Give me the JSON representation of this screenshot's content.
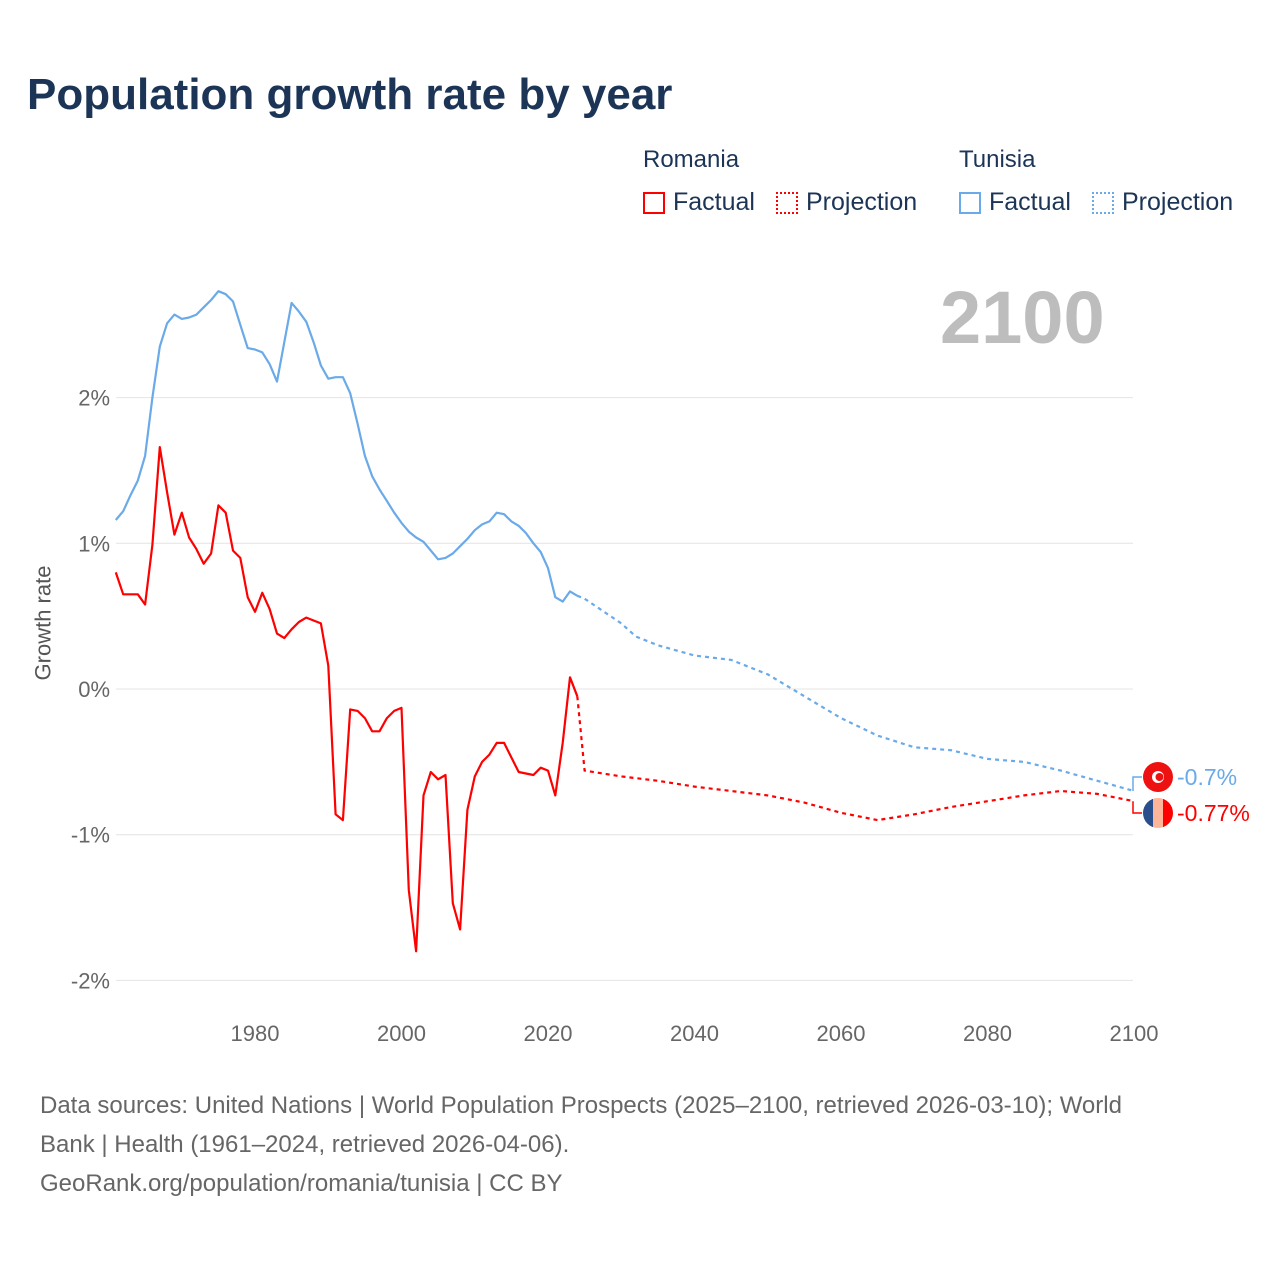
{
  "chart_data": {
    "type": "line",
    "title": "Population growth rate by year",
    "ylabel": "Growth rate",
    "xlabel": "",
    "current_year_label": "2100",
    "xlim": [
      1961,
      2100
    ],
    "ylim": [
      -2.2,
      2.9
    ],
    "x_ticks": [
      "1980",
      "2000",
      "2020",
      "2040",
      "2060",
      "2080",
      "2100"
    ],
    "x_tick_values": [
      1980,
      2000,
      2020,
      2040,
      2060,
      2080,
      2100
    ],
    "y_ticks": [
      "2%",
      "1%",
      "0%",
      "-1%",
      "-2%"
    ],
    "y_tick_values": [
      2,
      1,
      0,
      -1,
      -2
    ],
    "grid": true,
    "legend_position": "top-right",
    "legend": {
      "groups": [
        {
          "name": "Romania",
          "factual": "Factual",
          "projection": "Projection"
        },
        {
          "name": "Tunisia",
          "factual": "Factual",
          "projection": "Projection"
        }
      ]
    },
    "series": [
      {
        "name": "Romania",
        "color": "#ff0000",
        "end_label": "-0.77%",
        "factual_start_year": 1961,
        "factual": [
          0.8,
          0.65,
          0.65,
          0.65,
          0.58,
          0.99,
          1.66,
          1.35,
          1.06,
          1.21,
          1.04,
          0.96,
          0.86,
          0.93,
          1.26,
          1.21,
          0.95,
          0.9,
          0.63,
          0.53,
          0.66,
          0.55,
          0.38,
          0.35,
          0.41,
          0.46,
          0.49,
          0.47,
          0.45,
          0.16,
          -0.86,
          -0.9,
          -0.14,
          -0.15,
          -0.2,
          -0.29,
          -0.29,
          -0.2,
          -0.15,
          -0.13,
          -1.38,
          -1.8,
          -0.73,
          -0.57,
          -0.62,
          -0.59,
          -1.47,
          -1.65,
          -0.83,
          -0.6,
          -0.5,
          -0.45,
          -0.37,
          -0.37,
          -0.47,
          -0.57,
          -0.58,
          -0.59,
          -0.54,
          -0.56,
          -0.73,
          -0.37,
          0.08,
          -0.05
        ],
        "projection_years": [
          2024,
          2025,
          2030,
          2035,
          2040,
          2045,
          2050,
          2055,
          2060,
          2065,
          2070,
          2075,
          2080,
          2085,
          2090,
          2095,
          2100
        ],
        "projection": [
          -0.05,
          -0.56,
          -0.6,
          -0.63,
          -0.67,
          -0.7,
          -0.73,
          -0.78,
          -0.85,
          -0.9,
          -0.86,
          -0.81,
          -0.77,
          -0.73,
          -0.7,
          -0.72,
          -0.77
        ]
      },
      {
        "name": "Tunisia",
        "color": "#6aaae8",
        "end_label": "-0.7%",
        "factual_start_year": 1961,
        "factual": [
          1.16,
          1.22,
          1.33,
          1.43,
          1.6,
          2.0,
          2.35,
          2.51,
          2.57,
          2.54,
          2.55,
          2.57,
          2.62,
          2.67,
          2.73,
          2.71,
          2.66,
          2.5,
          2.34,
          2.33,
          2.31,
          2.23,
          2.11,
          2.38,
          2.65,
          2.59,
          2.52,
          2.38,
          2.22,
          2.13,
          2.14,
          2.14,
          2.03,
          1.82,
          1.6,
          1.46,
          1.37,
          1.29,
          1.21,
          1.14,
          1.08,
          1.04,
          1.01,
          0.95,
          0.89,
          0.9,
          0.93,
          0.98,
          1.03,
          1.09,
          1.13,
          1.15,
          1.21,
          1.2,
          1.15,
          1.12,
          1.07,
          1.0,
          0.94,
          0.83,
          0.63,
          0.6,
          0.67,
          0.64
        ],
        "projection_years": [
          2024,
          2025,
          2030,
          2032,
          2035,
          2040,
          2045,
          2050,
          2055,
          2060,
          2065,
          2070,
          2075,
          2080,
          2085,
          2090,
          2095,
          2100
        ],
        "projection": [
          0.64,
          0.62,
          0.45,
          0.36,
          0.3,
          0.23,
          0.2,
          0.1,
          -0.05,
          -0.2,
          -0.32,
          -0.4,
          -0.42,
          -0.48,
          -0.5,
          -0.56,
          -0.63,
          -0.7
        ]
      }
    ]
  },
  "footer": {
    "sources": "Data sources: United Nations | World Population Prospects (2025–2100, retrieved 2026-03-10); World",
    "sources2": "Bank | Health (1961–2024, retrieved 2026-04-06).",
    "attribution": "GeoRank.org/population/romania/tunisia | CC BY"
  }
}
